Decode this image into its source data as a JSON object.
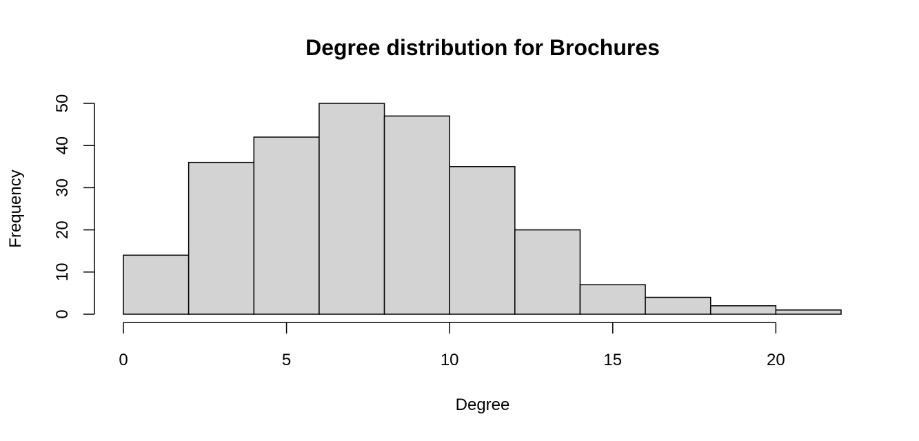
{
  "chart_data": {
    "type": "bar",
    "title": "Degree distribution for Brochures",
    "xlabel": "Degree",
    "ylabel": "Frequency",
    "bin_edges": [
      0,
      2,
      4,
      6,
      8,
      10,
      12,
      14,
      16,
      18,
      20,
      22
    ],
    "values": [
      14,
      36,
      42,
      50,
      47,
      35,
      20,
      7,
      4,
      2,
      1
    ],
    "xlim": [
      0,
      22
    ],
    "ylim": [
      0,
      50
    ],
    "x_ticks": [
      0,
      5,
      10,
      15,
      20
    ],
    "y_ticks": [
      0,
      10,
      20,
      30,
      40,
      50
    ],
    "bar_color": "#d3d3d3",
    "grid": false,
    "legend": false
  }
}
